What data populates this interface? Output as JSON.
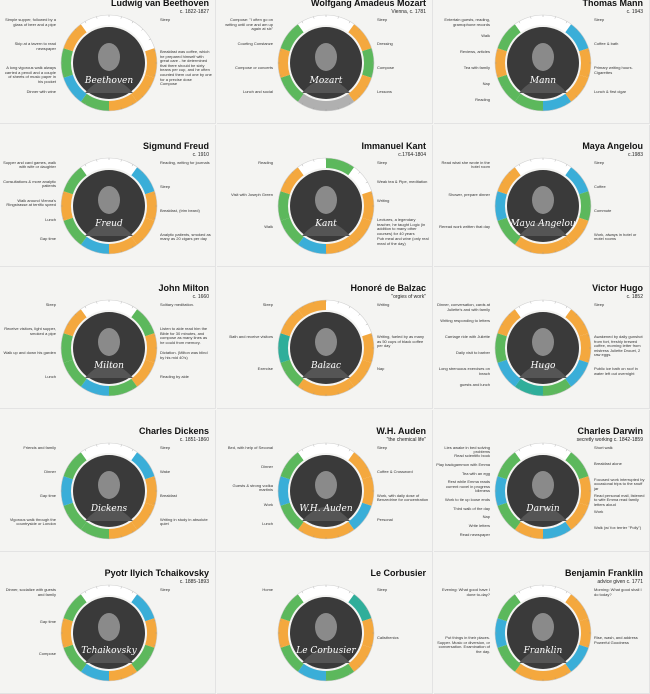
{
  "colors": {
    "work": "#f4a83e",
    "sleep": "#ffffff",
    "leisure": "#5cb85c",
    "food": "#3aaed8",
    "exercise": "#2fae9a",
    "other": "#b0b0b0"
  },
  "people": [
    {
      "id": "beethoven",
      "name": "Ludwig van Beethoven",
      "sub": "c. 1822-1827",
      "sig": "Beethoven",
      "anns": [
        {
          "side": "l",
          "text": "Simple supper, followed by a glass of beer and a pipe"
        },
        {
          "side": "l",
          "text": "Skip at a tavern to read newspaper"
        },
        {
          "side": "l",
          "text": "A long vigorous walk always carried a pencil and a couple of sheets of music paper in his pocket"
        },
        {
          "side": "l",
          "text": "Dinner with wine"
        },
        {
          "side": "r",
          "text": "Sleep"
        },
        {
          "side": "r",
          "text": "Breakfast was coffee, which he prepared himself with great care - he determined that there should be sixty beans per cup, and he often counted them out one by one for a precise dose"
        },
        {
          "side": "r",
          "text": "Compose"
        }
      ]
    },
    {
      "id": "mozart",
      "name": "Wolfgang Amadeus Mozart",
      "sub": "Vienna, c. 1781",
      "sig": "Mozart",
      "anns": [
        {
          "side": "l",
          "text": "Compose: \"I often go on writing until one and am up again at six\""
        },
        {
          "side": "l",
          "text": "Courting Constanze"
        },
        {
          "side": "l",
          "text": "Compose or concerts"
        },
        {
          "side": "l",
          "text": "Lunch and social"
        },
        {
          "side": "r",
          "text": "Sleep"
        },
        {
          "side": "r",
          "text": "Dressing"
        },
        {
          "side": "r",
          "text": "Compose"
        },
        {
          "side": "r",
          "text": "Lessons"
        }
      ]
    },
    {
      "id": "mann",
      "name": "Thomas Mann",
      "sub": "c. 1943",
      "sig": "Mann",
      "anns": [
        {
          "side": "l",
          "text": "Entertain guests, reading, gramophone records"
        },
        {
          "side": "l",
          "text": "Walk"
        },
        {
          "side": "l",
          "text": "Reviews, articles"
        },
        {
          "side": "l",
          "text": "Tea with family"
        },
        {
          "side": "l",
          "text": "Nap"
        },
        {
          "side": "l",
          "text": "Reading"
        },
        {
          "side": "r",
          "text": "Sleep"
        },
        {
          "side": "r",
          "text": "Coffee & bath"
        },
        {
          "side": "r",
          "text": "Primary writing hours. Cigarettes"
        },
        {
          "side": "r",
          "text": "Lunch & first cigar"
        }
      ]
    },
    {
      "id": "freud",
      "name": "Sigmund Freud",
      "sub": "c. 1910",
      "sig": "Freud",
      "anns": [
        {
          "side": "l",
          "text": "Supper and card games, walk with wife or daughter"
        },
        {
          "side": "l",
          "text": "Consultations & more analytic patients"
        },
        {
          "side": "l",
          "text": "Walk around Vienna's Ringstrasse at terrific speed"
        },
        {
          "side": "l",
          "text": "Lunch"
        },
        {
          "side": "l",
          "text": "Gap time"
        },
        {
          "side": "r",
          "text": "Reading, writing for journals"
        },
        {
          "side": "r",
          "text": "Sleep"
        },
        {
          "side": "r",
          "text": "Breakfast, (trim beard)"
        },
        {
          "side": "r",
          "text": "Analytic patients, smoked as many as 20 cigars per day"
        }
      ]
    },
    {
      "id": "kant",
      "name": "Immanuel Kant",
      "sub": "c.1764-1804",
      "sig": "Kant",
      "anns": [
        {
          "side": "l",
          "text": "Reading"
        },
        {
          "side": "l",
          "text": "Visit with Joseph Green"
        },
        {
          "side": "l",
          "text": "Walk"
        },
        {
          "side": "r",
          "text": "Sleep"
        },
        {
          "side": "r",
          "text": "Weak tea & Pipe, meditation"
        },
        {
          "side": "r",
          "text": "Writing"
        },
        {
          "side": "r",
          "text": "Lectures, a legendary teacher, he taught Logic (in addition to many other courses) for 40 years"
        },
        {
          "side": "r",
          "text": "Pub meal and wine (only real meal of the day)"
        }
      ]
    },
    {
      "id": "angelou",
      "name": "Maya Angelou",
      "sub": "c.1983",
      "sig": "Maya Angelou",
      "anns": [
        {
          "side": "l",
          "text": "Read what she wrote in the hotel room"
        },
        {
          "side": "l",
          "text": "Shower, prepare dinner"
        },
        {
          "side": "l",
          "text": "Reread work written that day"
        },
        {
          "side": "r",
          "text": "Sleep"
        },
        {
          "side": "r",
          "text": "Coffee"
        },
        {
          "side": "r",
          "text": "Commute"
        },
        {
          "side": "r",
          "text": "Work, always in hotel or motel rooms"
        }
      ]
    },
    {
      "id": "milton",
      "name": "John Milton",
      "sub": "c. 1660",
      "sig": "Milton",
      "anns": [
        {
          "side": "l",
          "text": "Sleep"
        },
        {
          "side": "l",
          "text": "Receive visitors, light supper, smoked a pipe"
        },
        {
          "side": "l",
          "text": "Walk up and down his garden"
        },
        {
          "side": "l",
          "text": "Lunch"
        },
        {
          "side": "r",
          "text": "Solitary meditation."
        },
        {
          "side": "r",
          "text": "Listen to aide read him the Bible for 30 minutes, and compose as many lines as he could from memory."
        },
        {
          "side": "r",
          "text": "Dictation. (Milton was blind by his mid 40's)"
        },
        {
          "side": "r",
          "text": "Reading by aide"
        }
      ]
    },
    {
      "id": "balzac",
      "name": "Honoré de Balzac",
      "sub": "\"orgies of work\"",
      "sig": "Balzac",
      "anns": [
        {
          "side": "l",
          "text": "Sleep"
        },
        {
          "side": "l",
          "text": "Bath and receive visitors"
        },
        {
          "side": "l",
          "text": "Exercise"
        },
        {
          "side": "r",
          "text": "Writing"
        },
        {
          "side": "r",
          "text": "Writing, fueled by as many as 50 cups of black coffee per day"
        },
        {
          "side": "r",
          "text": "Nap"
        }
      ]
    },
    {
      "id": "hugo",
      "name": "Victor Hugo",
      "sub": "c. 1852",
      "sig": "Hugo",
      "anns": [
        {
          "side": "l",
          "text": "Dinner, conversation, cards at Juliette's and with family"
        },
        {
          "side": "l",
          "text": "Writing responding to letters"
        },
        {
          "side": "l",
          "text": "Carriage ride with Juliette"
        },
        {
          "side": "l",
          "text": "Daily visit to barber"
        },
        {
          "side": "l",
          "text": "Long strenuous exercises on beach"
        },
        {
          "side": "l",
          "text": "guests and lunch"
        },
        {
          "side": "r",
          "text": "Sleep"
        },
        {
          "side": "r",
          "text": "Awakened by daily gunshot from fort, freshly brewed coffee, morning letter from mistress Juliette Drouet, 2 raw eggs."
        },
        {
          "side": "r",
          "text": "Public ice bath on roof in water left out overnight"
        }
      ]
    },
    {
      "id": "dickens",
      "name": "Charles Dickens",
      "sub": "c. 1851-1860",
      "sig": "Dickens",
      "anns": [
        {
          "side": "l",
          "text": "Friends and family"
        },
        {
          "side": "l",
          "text": "Dinner"
        },
        {
          "side": "l",
          "text": "Gap time"
        },
        {
          "side": "l",
          "text": "Vigorous walk through the countryside or London"
        },
        {
          "side": "r",
          "text": "Sleep"
        },
        {
          "side": "r",
          "text": "Wake"
        },
        {
          "side": "r",
          "text": "Breakfast"
        },
        {
          "side": "r",
          "text": "Writing in study in absolute quiet"
        }
      ]
    },
    {
      "id": "auden",
      "name": "W.H. Auden",
      "sub": "\"the chemical life\"",
      "sig": "W.H. Auden",
      "anns": [
        {
          "side": "l",
          "text": "Bed, with help of Seconal"
        },
        {
          "side": "l",
          "text": "Dinner"
        },
        {
          "side": "l",
          "text": "Guests & strong vodka martinis"
        },
        {
          "side": "l",
          "text": "Work"
        },
        {
          "side": "l",
          "text": "Lunch"
        },
        {
          "side": "r",
          "text": "Sleep"
        },
        {
          "side": "r",
          "text": "Coffee & Crossword"
        },
        {
          "side": "r",
          "text": "Work, with daily dose of Benzedrine for concentration"
        },
        {
          "side": "r",
          "text": "Personal"
        }
      ]
    },
    {
      "id": "darwin",
      "name": "Charles Darwin",
      "sub": "secretly working c. 1842-1859",
      "sig": "Darwin",
      "anns": [
        {
          "side": "l",
          "text": "Lies awake in bed solving problems"
        },
        {
          "side": "l",
          "text": "Read scientific book"
        },
        {
          "side": "l",
          "text": "Play backgammon with Emma"
        },
        {
          "side": "l",
          "text": "Tea with an egg"
        },
        {
          "side": "l",
          "text": "Rest while Emma reads current novel in progress"
        },
        {
          "side": "l",
          "text": "Idleness"
        },
        {
          "side": "l",
          "text": "Work to tie up loose ends"
        },
        {
          "side": "l",
          "text": "Third walk of the day"
        },
        {
          "side": "l",
          "text": "Nap"
        },
        {
          "side": "l",
          "text": "Write letters"
        },
        {
          "side": "l",
          "text": "Read newspaper"
        },
        {
          "side": "r",
          "text": "Short walk"
        },
        {
          "side": "r",
          "text": "Breakfast alone"
        },
        {
          "side": "r",
          "text": "Focused work interrupted by occasional trips to the snuff jar"
        },
        {
          "side": "r",
          "text": "Read personal mail, listened to wife Emma read family letters aloud"
        },
        {
          "side": "r",
          "text": "Work"
        },
        {
          "side": "r",
          "text": "Walk (w/ fox terrier \"Polly\")"
        }
      ]
    },
    {
      "id": "tchaikovsky",
      "name": "Pyotr Ilyich Tchaikovsky",
      "sub": "c. 1885-1893",
      "sig": "Tchaikovsky",
      "anns": [
        {
          "side": "l",
          "text": "Dinner, socialize with guests and family"
        },
        {
          "side": "l",
          "text": "Gap time"
        },
        {
          "side": "l",
          "text": "Compose"
        },
        {
          "side": "r",
          "text": "Sleep"
        }
      ]
    },
    {
      "id": "corbusier",
      "name": "Le Corbusier",
      "sub": "",
      "sig": "Le Corbusier",
      "anns": [
        {
          "side": "l",
          "text": "Home"
        },
        {
          "side": "r",
          "text": "Sleep"
        },
        {
          "side": "r",
          "text": "Calisthenics"
        }
      ]
    },
    {
      "id": "franklin",
      "name": "Benjamin Franklin",
      "sub": "advice given c. 1771",
      "sig": "Franklin",
      "anns": [
        {
          "side": "l",
          "text": "Evening: What good have I done to-day?"
        },
        {
          "side": "l",
          "text": "Put things in their places. Supper. Music or diversion, or conversation. Examination of the day."
        },
        {
          "side": "r",
          "text": "Morning: What good shall I do today?"
        },
        {
          "side": "r",
          "text": "Rise, wash, and address Powerful Goodness"
        }
      ]
    }
  ]
}
